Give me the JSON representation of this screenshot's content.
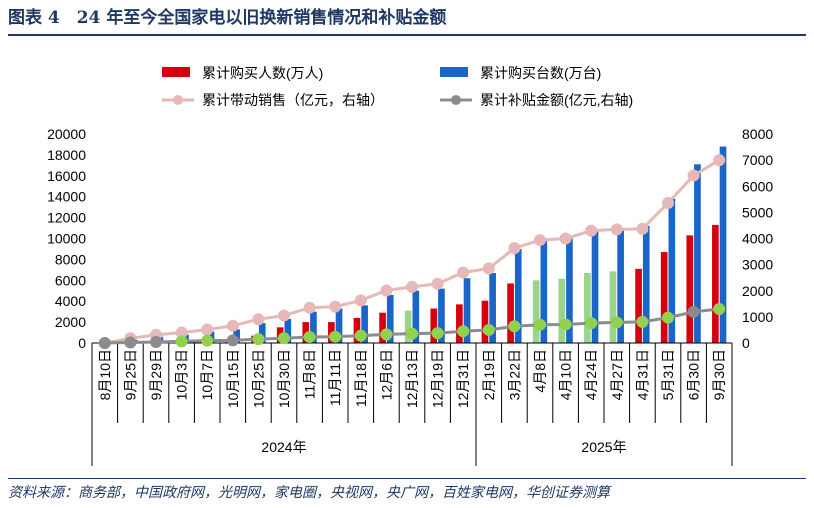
{
  "header": {
    "title": "图表 4　24 年至今全国家电以旧换新销售情况和补贴金额"
  },
  "footer": {
    "source": "资料来源：商务部，中国政府网，光明网，家电圈，央视网，央广网，百姓家电网，华创证券测算"
  },
  "colors": {
    "title": "#1f3864",
    "people_bar": "#d7000f",
    "people_bar_alt": "#9bd48a",
    "units_bar": "#1b64c8",
    "sales_line": "#e6b8b7",
    "subsidy_line": "#8c8c8c",
    "subsidy_marker": "#92d050"
  },
  "chart_data": {
    "type": "bar",
    "categories": [
      "8月10日",
      "9月25日",
      "9月29日",
      "10月3日",
      "10月7日",
      "10月15日",
      "10月25日",
      "10月30日",
      "11月8日",
      "11月11日",
      "11月18日",
      "12月6日",
      "12月13日",
      "12月19日",
      "12月31日",
      "2月19日",
      "3月22日",
      "4月8日",
      "4月10日",
      "4月24日",
      "4月27日",
      "4月31日",
      "5月31日",
      "6月30日",
      "9月30日"
    ],
    "groups": [
      {
        "label": "2024年",
        "count": 15
      },
      {
        "label": "2025年",
        "count": 10
      }
    ],
    "series": [
      {
        "name": "累计购买人数(万人)",
        "axis": "left",
        "kind": "bar",
        "values": [
          0,
          50,
          100,
          130,
          180,
          300,
          700,
          1500,
          2000,
          2000,
          2400,
          2900,
          3100,
          3300,
          3700,
          4050,
          5700,
          6000,
          6150,
          6700,
          6850,
          7100,
          8700,
          10300,
          11300
        ],
        "light_fill": [
          false,
          false,
          false,
          false,
          false,
          false,
          false,
          false,
          false,
          false,
          false,
          false,
          true,
          false,
          false,
          false,
          false,
          true,
          true,
          true,
          true,
          false,
          false,
          false,
          false
        ]
      },
      {
        "name": "累计购买台数(万台)",
        "axis": "left",
        "kind": "bar",
        "values": [
          0,
          300,
          600,
          800,
          1100,
          1300,
          1900,
          2300,
          3000,
          3300,
          3600,
          4600,
          5000,
          5200,
          6200,
          6700,
          9000,
          10000,
          10000,
          10800,
          10800,
          11200,
          13800,
          17100,
          18800
        ]
      },
      {
        "name": "累计带动销售（亿元，右轴）",
        "axis": "right",
        "kind": "line",
        "values": [
          0,
          180,
          310,
          400,
          510,
          660,
          910,
          1050,
          1350,
          1390,
          1630,
          2010,
          2150,
          2270,
          2700,
          2850,
          3630,
          3940,
          4000,
          4300,
          4350,
          4370,
          5360,
          6410,
          7000
        ]
      },
      {
        "name": "累计补贴金额(亿元,右轴)",
        "axis": "right",
        "kind": "line",
        "values": [
          0,
          20,
          40,
          60,
          90,
          100,
          150,
          180,
          230,
          240,
          280,
          330,
          360,
          380,
          450,
          500,
          640,
          700,
          710,
          760,
          790,
          810,
          970,
          1190,
          1300
        ]
      }
    ],
    "left_axis": {
      "min": 0,
      "max": 20000,
      "ticks": [
        "0",
        "2000",
        "4000",
        "6000",
        "8000",
        "10000",
        "12000",
        "14000",
        "16000",
        "18000",
        "20000"
      ]
    },
    "right_axis": {
      "min": 0,
      "max": 8000,
      "ticks": [
        "0",
        "1000",
        "2000",
        "3000",
        "4000",
        "5000",
        "6000",
        "7000",
        "8000"
      ]
    },
    "legend_position": "top",
    "grid": false
  }
}
